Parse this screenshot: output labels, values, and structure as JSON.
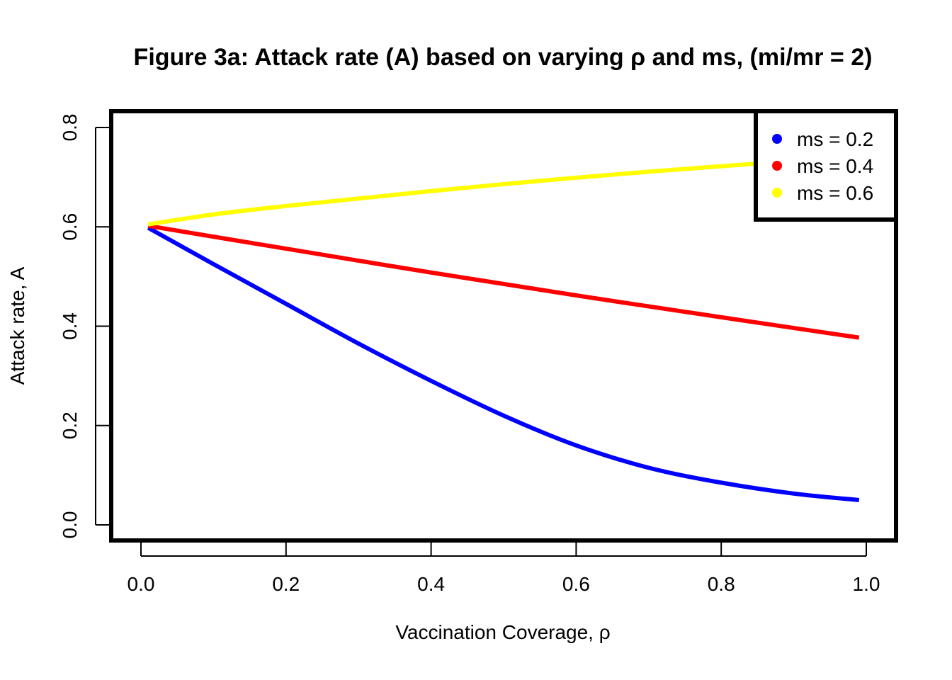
{
  "chart_data": {
    "type": "line",
    "title": "Figure 3a: Attack rate (A) based on varying ρ and ms, (mi/mr = 2)",
    "xlabel": "Vaccination Coverage,  ρ",
    "ylabel": "Attack rate, A",
    "xlim": [
      0.0,
      1.0
    ],
    "ylim": [
      0.0,
      0.8
    ],
    "xticks": [
      "0.0",
      "0.2",
      "0.4",
      "0.6",
      "0.8",
      "1.0"
    ],
    "yticks": [
      "0.0",
      "0.2",
      "0.4",
      "0.6",
      "0.8"
    ],
    "grid": false,
    "legend_position": "top-right",
    "series": [
      {
        "name": "ms = 0.2",
        "color": "#0000ff",
        "x": [
          0.01,
          0.1,
          0.2,
          0.3,
          0.4,
          0.5,
          0.6,
          0.7,
          0.8,
          0.9,
          0.99
        ],
        "y": [
          0.598,
          0.525,
          0.445,
          0.365,
          0.29,
          0.22,
          0.16,
          0.115,
          0.085,
          0.063,
          0.05
        ]
      },
      {
        "name": "ms = 0.4",
        "color": "#ff0000",
        "x": [
          0.01,
          0.2,
          0.4,
          0.6,
          0.8,
          0.99
        ],
        "y": [
          0.602,
          0.556,
          0.508,
          0.462,
          0.418,
          0.377
        ]
      },
      {
        "name": "ms = 0.6",
        "color": "#ffff00",
        "x": [
          0.01,
          0.1,
          0.2,
          0.3,
          0.4,
          0.5,
          0.6,
          0.7,
          0.8,
          0.9,
          0.99
        ],
        "y": [
          0.605,
          0.625,
          0.642,
          0.657,
          0.672,
          0.686,
          0.699,
          0.711,
          0.722,
          0.733,
          0.742
        ]
      }
    ]
  }
}
